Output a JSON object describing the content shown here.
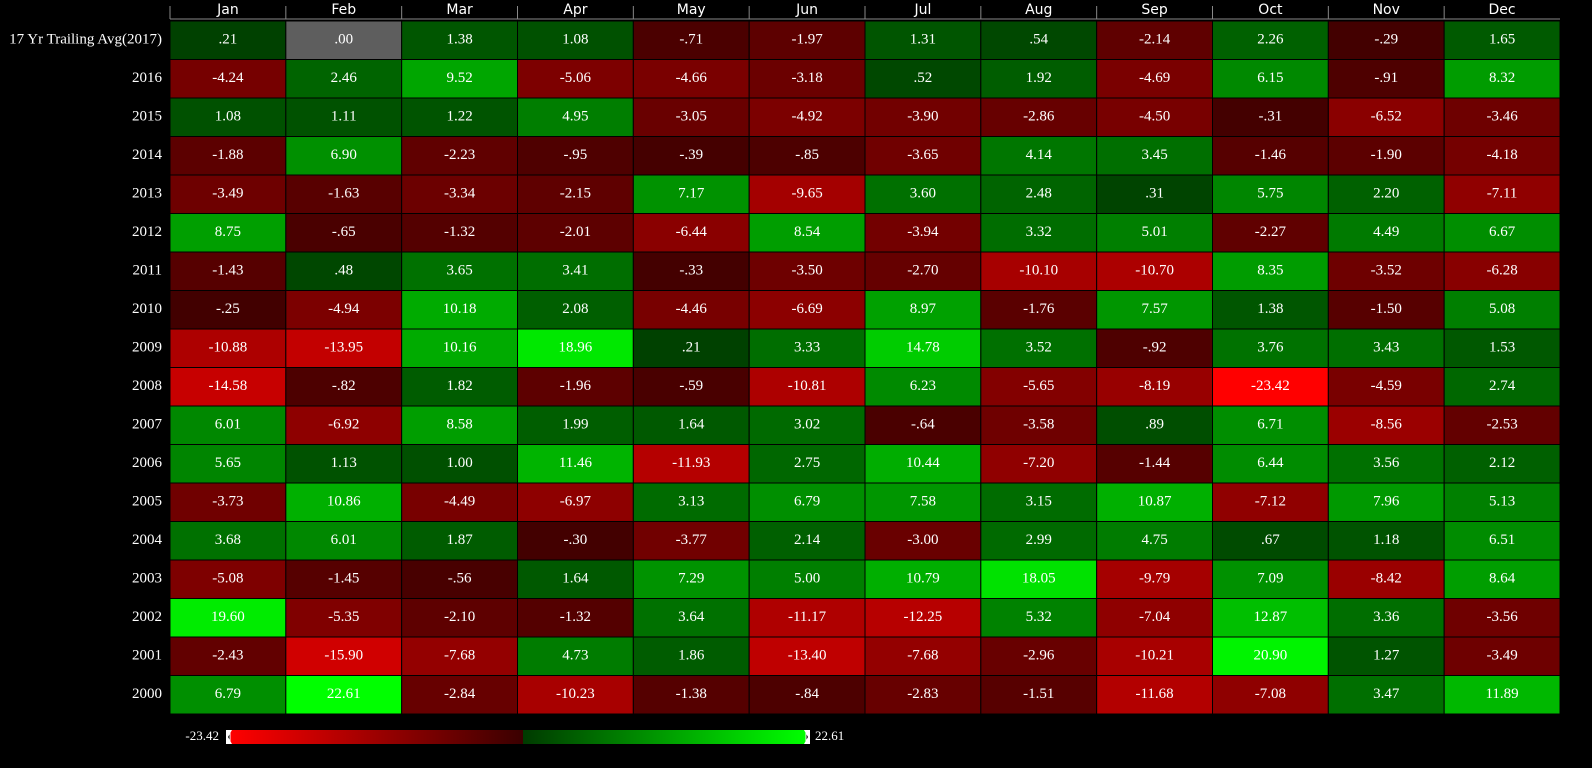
{
  "chart_data": {
    "type": "heatmap",
    "x_categories": [
      "Jan",
      "Feb",
      "Mar",
      "Apr",
      "May",
      "Jun",
      "Jul",
      "Aug",
      "Sep",
      "Oct",
      "Nov",
      "Dec"
    ],
    "y_categories": [
      "17 Yr Trailing Avg(2017)",
      "2016",
      "2015",
      "2014",
      "2013",
      "2012",
      "2011",
      "2010",
      "2009",
      "2008",
      "2007",
      "2006",
      "2005",
      "2004",
      "2003",
      "2002",
      "2001",
      "2000"
    ],
    "values": [
      [
        0.21,
        0,
        1.38,
        1.08,
        -0.71,
        -1.97,
        1.31,
        0.54,
        -2.14,
        2.26,
        -0.29,
        1.65
      ],
      [
        -4.24,
        2.46,
        9.52,
        -5.06,
        -4.66,
        -3.18,
        0.52,
        1.92,
        -4.69,
        6.15,
        -0.91,
        8.32
      ],
      [
        1.08,
        1.11,
        1.22,
        4.95,
        -3.05,
        -4.92,
        -3.9,
        -2.86,
        -4.5,
        -0.31,
        -6.52,
        -3.46
      ],
      [
        -1.88,
        6.9,
        -2.23,
        -0.95,
        -0.39,
        -0.85,
        -3.65,
        4.14,
        3.45,
        -1.46,
        -1.9,
        -4.18
      ],
      [
        -3.49,
        -1.63,
        -3.34,
        -2.15,
        7.17,
        -9.65,
        3.6,
        2.48,
        0.31,
        5.75,
        2.2,
        -7.11
      ],
      [
        8.75,
        -0.65,
        -1.32,
        -2.01,
        -6.44,
        8.54,
        -3.94,
        3.32,
        5.01,
        -2.27,
        4.49,
        6.67
      ],
      [
        -1.43,
        0.48,
        3.65,
        3.41,
        -0.33,
        -3.5,
        -2.7,
        -10.1,
        -10.7,
        8.35,
        -3.52,
        -6.28
      ],
      [
        -0.25,
        -4.94,
        10.18,
        2.08,
        -4.46,
        -6.69,
        8.97,
        -1.76,
        7.57,
        1.38,
        -1.5,
        5.08
      ],
      [
        -10.88,
        -13.95,
        10.16,
        18.96,
        0.21,
        3.33,
        14.78,
        3.52,
        -0.92,
        3.76,
        3.43,
        1.53
      ],
      [
        -14.58,
        -0.82,
        1.82,
        -1.96,
        -0.59,
        -10.81,
        6.23,
        -5.65,
        -8.19,
        -23.42,
        -4.59,
        2.74
      ],
      [
        6.01,
        -6.92,
        8.58,
        1.99,
        1.64,
        3.02,
        -0.64,
        -3.58,
        0.89,
        6.71,
        -8.56,
        -2.53
      ],
      [
        5.65,
        1.13,
        1,
        11.46,
        -11.93,
        2.75,
        10.44,
        -7.2,
        -1.44,
        6.44,
        3.56,
        2.12
      ],
      [
        -3.73,
        10.86,
        -4.49,
        -6.97,
        3.13,
        6.79,
        7.58,
        3.15,
        10.87,
        -7.12,
        7.96,
        5.13
      ],
      [
        3.68,
        6.01,
        1.87,
        -0.3,
        -3.77,
        2.14,
        -3,
        2.99,
        4.75,
        0.67,
        1.18,
        6.51
      ],
      [
        -5.08,
        -1.45,
        -0.56,
        1.64,
        7.29,
        5,
        10.79,
        18.05,
        -9.79,
        7.09,
        -8.42,
        8.64
      ],
      [
        19.6,
        -5.35,
        -2.1,
        -1.32,
        3.64,
        -11.17,
        -12.25,
        5.32,
        -7.04,
        12.87,
        3.36,
        -3.56
      ],
      [
        -2.43,
        -15.9,
        -7.68,
        4.73,
        1.86,
        -13.4,
        -7.68,
        -2.96,
        -10.21,
        20.9,
        1.27,
        -3.49
      ],
      [
        6.79,
        22.61,
        -2.84,
        -10.23,
        -1.38,
        -0.84,
        -2.83,
        -1.51,
        -11.68,
        -7.08,
        3.47,
        11.89
      ]
    ],
    "value_labels": [
      [
        ".21",
        ".00",
        "1.38",
        "1.08",
        "-.71",
        "-1.97",
        "1.31",
        ".54",
        "-2.14",
        "2.26",
        "-.29",
        "1.65"
      ],
      [
        "-4.24",
        "2.46",
        "9.52",
        "-5.06",
        "-4.66",
        "-3.18",
        ".52",
        "1.92",
        "-4.69",
        "6.15",
        "-.91",
        "8.32"
      ],
      [
        "1.08",
        "1.11",
        "1.22",
        "4.95",
        "-3.05",
        "-4.92",
        "-3.90",
        "-2.86",
        "-4.50",
        "-.31",
        "-6.52",
        "-3.46"
      ],
      [
        "-1.88",
        "6.90",
        "-2.23",
        "-.95",
        "-.39",
        "-.85",
        "-3.65",
        "4.14",
        "3.45",
        "-1.46",
        "-1.90",
        "-4.18"
      ],
      [
        "-3.49",
        "-1.63",
        "-3.34",
        "-2.15",
        "7.17",
        "-9.65",
        "3.60",
        "2.48",
        ".31",
        "5.75",
        "2.20",
        "-7.11"
      ],
      [
        "8.75",
        "-.65",
        "-1.32",
        "-2.01",
        "-6.44",
        "8.54",
        "-3.94",
        "3.32",
        "5.01",
        "-2.27",
        "4.49",
        "6.67"
      ],
      [
        "-1.43",
        ".48",
        "3.65",
        "3.41",
        "-.33",
        "-3.50",
        "-2.70",
        "-10.10",
        "-10.70",
        "8.35",
        "-3.52",
        "-6.28"
      ],
      [
        "-.25",
        "-4.94",
        "10.18",
        "2.08",
        "-4.46",
        "-6.69",
        "8.97",
        "-1.76",
        "7.57",
        "1.38",
        "-1.50",
        "5.08"
      ],
      [
        "-10.88",
        "-13.95",
        "10.16",
        "18.96",
        ".21",
        "3.33",
        "14.78",
        "3.52",
        "-.92",
        "3.76",
        "3.43",
        "1.53"
      ],
      [
        "-14.58",
        "-.82",
        "1.82",
        "-1.96",
        "-.59",
        "-10.81",
        "6.23",
        "-5.65",
        "-8.19",
        "-23.42",
        "-4.59",
        "2.74"
      ],
      [
        "6.01",
        "-6.92",
        "8.58",
        "1.99",
        "1.64",
        "3.02",
        "-.64",
        "-3.58",
        ".89",
        "6.71",
        "-8.56",
        "-2.53"
      ],
      [
        "5.65",
        "1.13",
        "1.00",
        "11.46",
        "-11.93",
        "2.75",
        "10.44",
        "-7.20",
        "-1.44",
        "6.44",
        "3.56",
        "2.12"
      ],
      [
        "-3.73",
        "10.86",
        "-4.49",
        "-6.97",
        "3.13",
        "6.79",
        "7.58",
        "3.15",
        "10.87",
        "-7.12",
        "7.96",
        "5.13"
      ],
      [
        "3.68",
        "6.01",
        "1.87",
        "-.30",
        "-3.77",
        "2.14",
        "-3.00",
        "2.99",
        "4.75",
        ".67",
        "1.18",
        "6.51"
      ],
      [
        "-5.08",
        "-1.45",
        "-.56",
        "1.64",
        "7.29",
        "5.00",
        "10.79",
        "18.05",
        "-9.79",
        "7.09",
        "-8.42",
        "8.64"
      ],
      [
        "19.60",
        "-5.35",
        "-2.10",
        "-1.32",
        "3.64",
        "-11.17",
        "-12.25",
        "5.32",
        "-7.04",
        "12.87",
        "3.36",
        "-3.56"
      ],
      [
        "-2.43",
        "-15.90",
        "-7.68",
        "4.73",
        "1.86",
        "-13.40",
        "-7.68",
        "-2.96",
        "-10.21",
        "20.90",
        "1.27",
        "-3.49"
      ],
      [
        "6.79",
        "22.61",
        "-2.84",
        "-10.23",
        "-1.38",
        "-.84",
        "-2.83",
        "-1.51",
        "-11.68",
        "-7.08",
        "3.47",
        "11.89"
      ]
    ],
    "zlim": [
      -23.42,
      22.61
    ],
    "colorscale": {
      "min": "#ff0000",
      "mid_negative": "#3a0000",
      "mid_positive": "#003a00",
      "max": "#00ff00",
      "zero": "#5e5e5e"
    }
  }
}
